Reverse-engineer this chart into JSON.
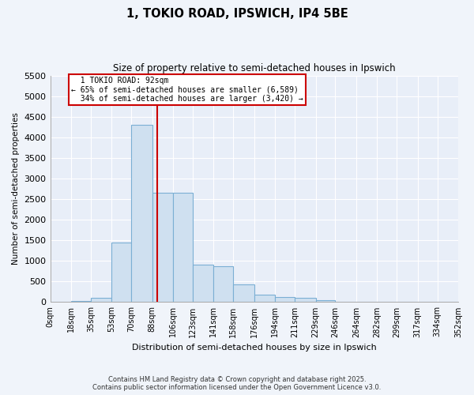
{
  "title": "1, TOKIO ROAD, IPSWICH, IP4 5BE",
  "subtitle": "Size of property relative to semi-detached houses in Ipswich",
  "xlabel": "Distribution of semi-detached houses by size in Ipswich",
  "ylabel": "Number of semi-detached properties",
  "bin_edges": [
    0,
    18,
    35,
    53,
    70,
    88,
    106,
    123,
    141,
    158,
    176,
    194,
    211,
    229,
    246,
    264,
    282,
    299,
    317,
    334,
    352
  ],
  "bin_labels": [
    "0sqm",
    "18sqm",
    "35sqm",
    "53sqm",
    "70sqm",
    "88sqm",
    "106sqm",
    "123sqm",
    "141sqm",
    "158sqm",
    "176sqm",
    "194sqm",
    "211sqm",
    "229sqm",
    "246sqm",
    "264sqm",
    "282sqm",
    "299sqm",
    "317sqm",
    "334sqm",
    "352sqm"
  ],
  "bar_heights": [
    0,
    30,
    100,
    1450,
    4300,
    2650,
    2650,
    900,
    870,
    430,
    175,
    130,
    100,
    50,
    0,
    0,
    0,
    0,
    0,
    0
  ],
  "property_size": 92,
  "property_label": "1 TOKIO ROAD: 92sqm",
  "pct_smaller": 65,
  "pct_smaller_count": 6589,
  "pct_larger": 34,
  "pct_larger_count": 3420,
  "bar_color": "#cfe0f0",
  "bar_edge_color": "#7bafd4",
  "vline_color": "#cc0000",
  "annotation_box_edge": "#cc0000",
  "background_color": "#f0f4fa",
  "plot_bg_color": "#e8eef8",
  "grid_color": "#ffffff",
  "ylim": [
    0,
    5500
  ],
  "yticks": [
    0,
    500,
    1000,
    1500,
    2000,
    2500,
    3000,
    3500,
    4000,
    4500,
    5000,
    5500
  ],
  "footer_line1": "Contains HM Land Registry data © Crown copyright and database right 2025.",
  "footer_line2": "Contains public sector information licensed under the Open Government Licence v3.0."
}
